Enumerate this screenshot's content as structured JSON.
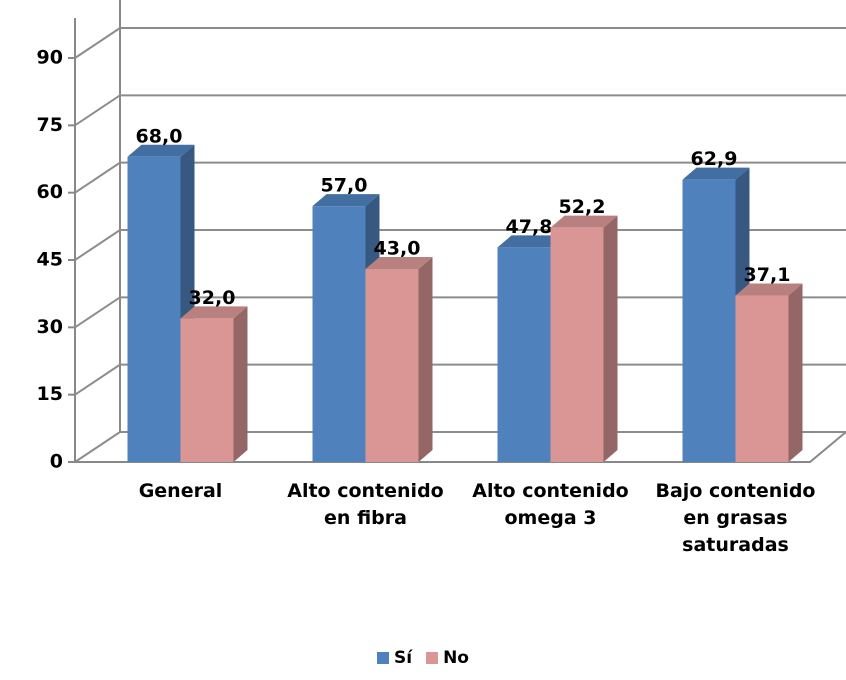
{
  "chart_data": {
    "type": "bar3d",
    "categories": [
      "General",
      "Alto contenido en fibra",
      "Alto contenido omega 3",
      "Bajo contenido en grasas saturadas"
    ],
    "series": [
      {
        "name": "Sí",
        "color": "#4f81bd",
        "values": [
          68.0,
          57.0,
          47.8,
          62.9
        ],
        "value_labels": [
          "68,0",
          "57,0",
          "47,8",
          "62,9"
        ]
      },
      {
        "name": "No",
        "color": "#d99694",
        "values": [
          32.0,
          43.0,
          52.2,
          37.1
        ],
        "value_labels": [
          "32,0",
          "43,0",
          "52,2",
          "37,1"
        ]
      }
    ],
    "ylim": [
      0,
      90
    ],
    "yticks": [
      0,
      15,
      30,
      45,
      60,
      75,
      90
    ],
    "grid": true,
    "legend": "bottom"
  }
}
